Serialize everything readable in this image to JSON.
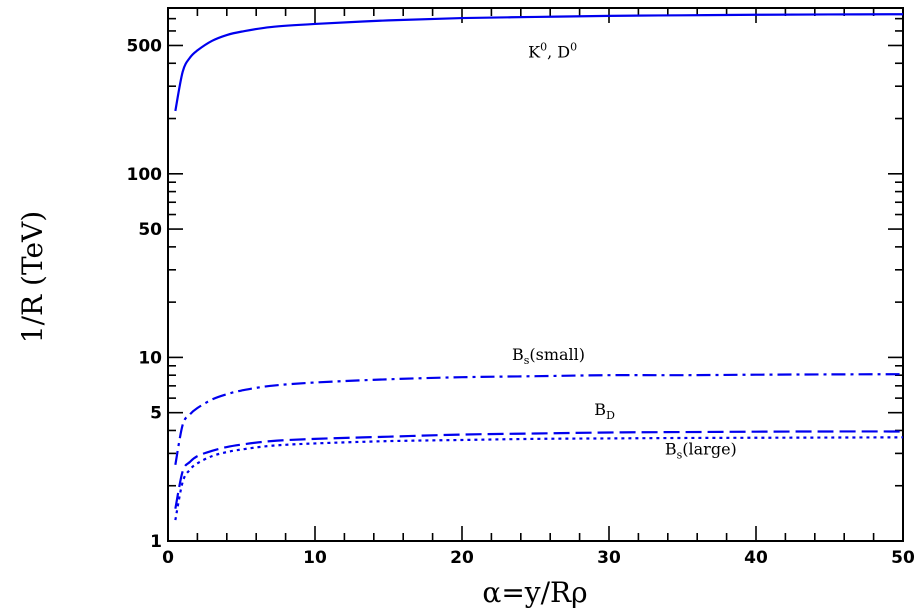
{
  "chart_data": {
    "type": "line",
    "xlabel": "α=y/Rρ",
    "ylabel": "1/R (TeV)",
    "xlim": [
      0,
      50
    ],
    "ylim": [
      1,
      800
    ],
    "yscale": "log",
    "grid": false,
    "legend": "none",
    "x_ticks": [
      "0",
      "10",
      "20",
      "30",
      "40",
      "50"
    ],
    "x_tick_values": [
      0,
      10,
      20,
      30,
      40,
      50
    ],
    "y_ticks": [
      "1",
      "5",
      "10",
      "50",
      "100",
      "500"
    ],
    "y_tick_values": [
      1,
      5,
      10,
      50,
      100,
      500
    ],
    "x": [
      0.5,
      1,
      1.5,
      2,
      3,
      4,
      5,
      7,
      10,
      15,
      20,
      25,
      30,
      35,
      40,
      45,
      50
    ],
    "series": [
      {
        "style": "solid",
        "color": "#0000ee",
        "values": [
          220,
          360,
          430,
          470,
          530,
          570,
          595,
          630,
          655,
          685,
          705,
          715,
          725,
          730,
          735,
          738,
          740
        ]
      },
      {
        "style": "dash-dot",
        "color": "#0000ee",
        "values": [
          2.6,
          4.3,
          4.9,
          5.3,
          5.9,
          6.3,
          6.6,
          7.0,
          7.3,
          7.6,
          7.8,
          7.9,
          8.0,
          8.0,
          8.05,
          8.08,
          8.1
        ]
      },
      {
        "style": "dashed",
        "color": "#0000ee",
        "values": [
          1.5,
          2.4,
          2.7,
          2.9,
          3.1,
          3.25,
          3.35,
          3.5,
          3.6,
          3.7,
          3.8,
          3.85,
          3.9,
          3.92,
          3.94,
          3.95,
          3.95
        ]
      },
      {
        "style": "dotted",
        "color": "#0000ee",
        "values": [
          1.3,
          2.1,
          2.45,
          2.65,
          2.9,
          3.05,
          3.15,
          3.3,
          3.4,
          3.5,
          3.55,
          3.6,
          3.62,
          3.64,
          3.65,
          3.66,
          3.67
        ]
      }
    ],
    "annotations": [
      {
        "text": "K",
        "sup": "0",
        "text2": ", D",
        "sup2": "0",
        "x": 24.5,
        "y": 430
      },
      {
        "text": "B",
        "sub": "s",
        "text2": "(small)",
        "x": 23.4,
        "y": 9.7
      },
      {
        "text": "B",
        "sub": "D",
        "text2": "",
        "x": 29.0,
        "y": 4.85
      },
      {
        "text": "B",
        "sub": "s",
        "text2": "(large)",
        "x": 33.8,
        "y": 2.95
      }
    ]
  }
}
